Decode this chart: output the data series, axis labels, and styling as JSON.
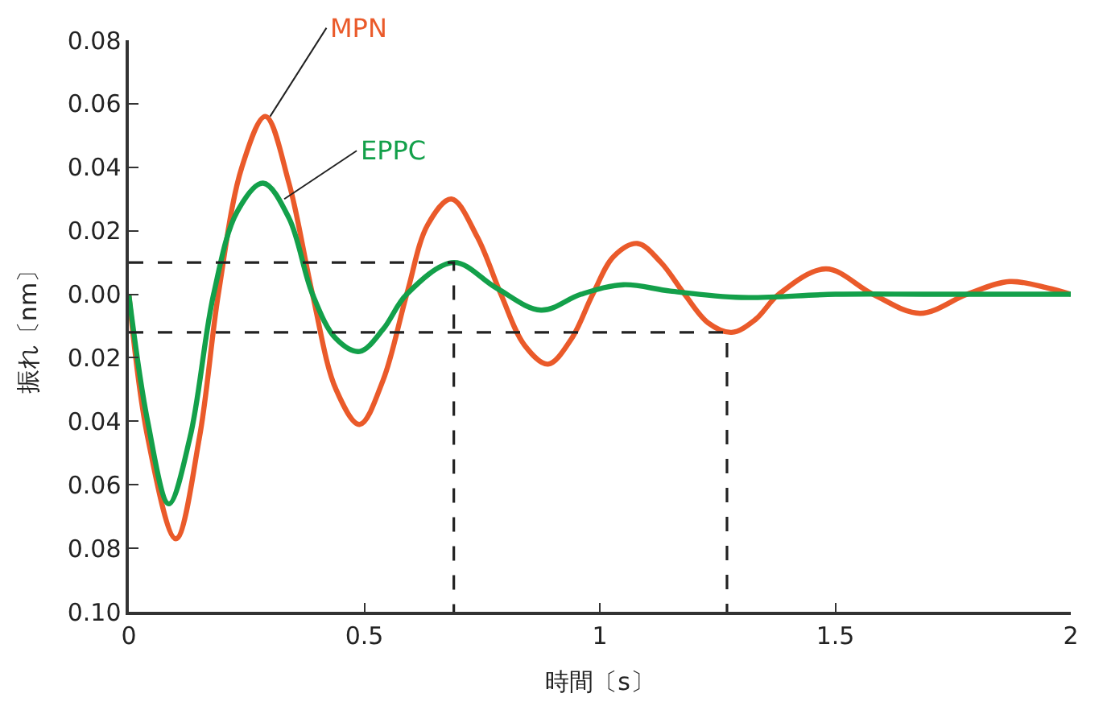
{
  "chart_data": {
    "type": "line",
    "xlabel": "時間〔s〕",
    "ylabel": "振れ〔nm〕",
    "xlim": [
      0,
      2
    ],
    "xticks": [
      0,
      0.5,
      1,
      1.5,
      2
    ],
    "ylim": [
      -0.1,
      0.08
    ],
    "yticks": [
      {
        "value": -0.1,
        "label": "0.10"
      },
      {
        "value": -0.08,
        "label": "0.08"
      },
      {
        "value": -0.06,
        "label": "0.06"
      },
      {
        "value": -0.04,
        "label": "0.04"
      },
      {
        "value": -0.02,
        "label": "0.02"
      },
      {
        "value": 0,
        "label": "0.00"
      },
      0.02,
      0.04,
      0.06,
      0.08
    ],
    "marker": "none",
    "series": [
      {
        "color": "#ea5a2a",
        "line_style": "solid",
        "x": [
          0,
          0.04,
          0.1,
          0.15,
          0.19,
          0.24,
          0.29,
          0.34,
          0.39,
          0.44,
          0.49,
          0.54,
          0.59,
          0.635,
          0.685,
          0.74,
          0.79,
          0.84,
          0.89,
          0.94,
          0.985,
          1.03,
          1.08,
          1.13,
          1.18,
          1.23,
          1.28,
          1.33,
          1.38,
          1.48,
          1.58,
          1.68,
          1.78,
          1.87,
          1.95,
          2
        ],
        "values": [
          0,
          -0.045,
          -0.077,
          -0.045,
          0,
          0.04,
          0.056,
          0.035,
          0,
          -0.03,
          -0.041,
          -0.027,
          0,
          0.022,
          0.03,
          0.018,
          0,
          -0.016,
          -0.022,
          -0.014,
          0,
          0.012,
          0.016,
          0.01,
          0,
          -0.009,
          -0.012,
          -0.008,
          0,
          0.008,
          0,
          -0.006,
          0,
          0.004,
          0.002,
          0
        ]
      },
      {
        "color": "#13a04a",
        "line_style": "solid",
        "x": [
          0,
          0.04,
          0.085,
          0.13,
          0.18,
          0.23,
          0.285,
          0.34,
          0.39,
          0.44,
          0.49,
          0.54,
          0.59,
          0.69,
          0.78,
          0.875,
          0.96,
          1.05,
          1.15,
          1.3,
          1.5,
          1.7,
          2
        ],
        "values": [
          0,
          -0.04,
          -0.066,
          -0.045,
          0,
          0.026,
          0.035,
          0.024,
          0,
          -0.014,
          -0.018,
          -0.011,
          0,
          0.01,
          0.002,
          -0.005,
          0,
          0.003,
          0.001,
          -0.001,
          0,
          0,
          0
        ]
      },
      {
        "color": "#222222",
        "line_style": "dashed",
        "x": [
          0,
          0.69,
          0.69
        ],
        "values": [
          0.01,
          0.01,
          -0.1
        ]
      },
      {
        "color": "#222222",
        "line_style": "dashed",
        "x": [
          0,
          1.27,
          1.27
        ],
        "values": [
          -0.012,
          -0.012,
          -0.1
        ]
      }
    ],
    "annotations": [
      {
        "text": "MPN",
        "x": 0.3,
        "y": 0.056
      },
      {
        "text": "EPPC",
        "x": 0.33,
        "y": 0.03
      }
    ]
  }
}
